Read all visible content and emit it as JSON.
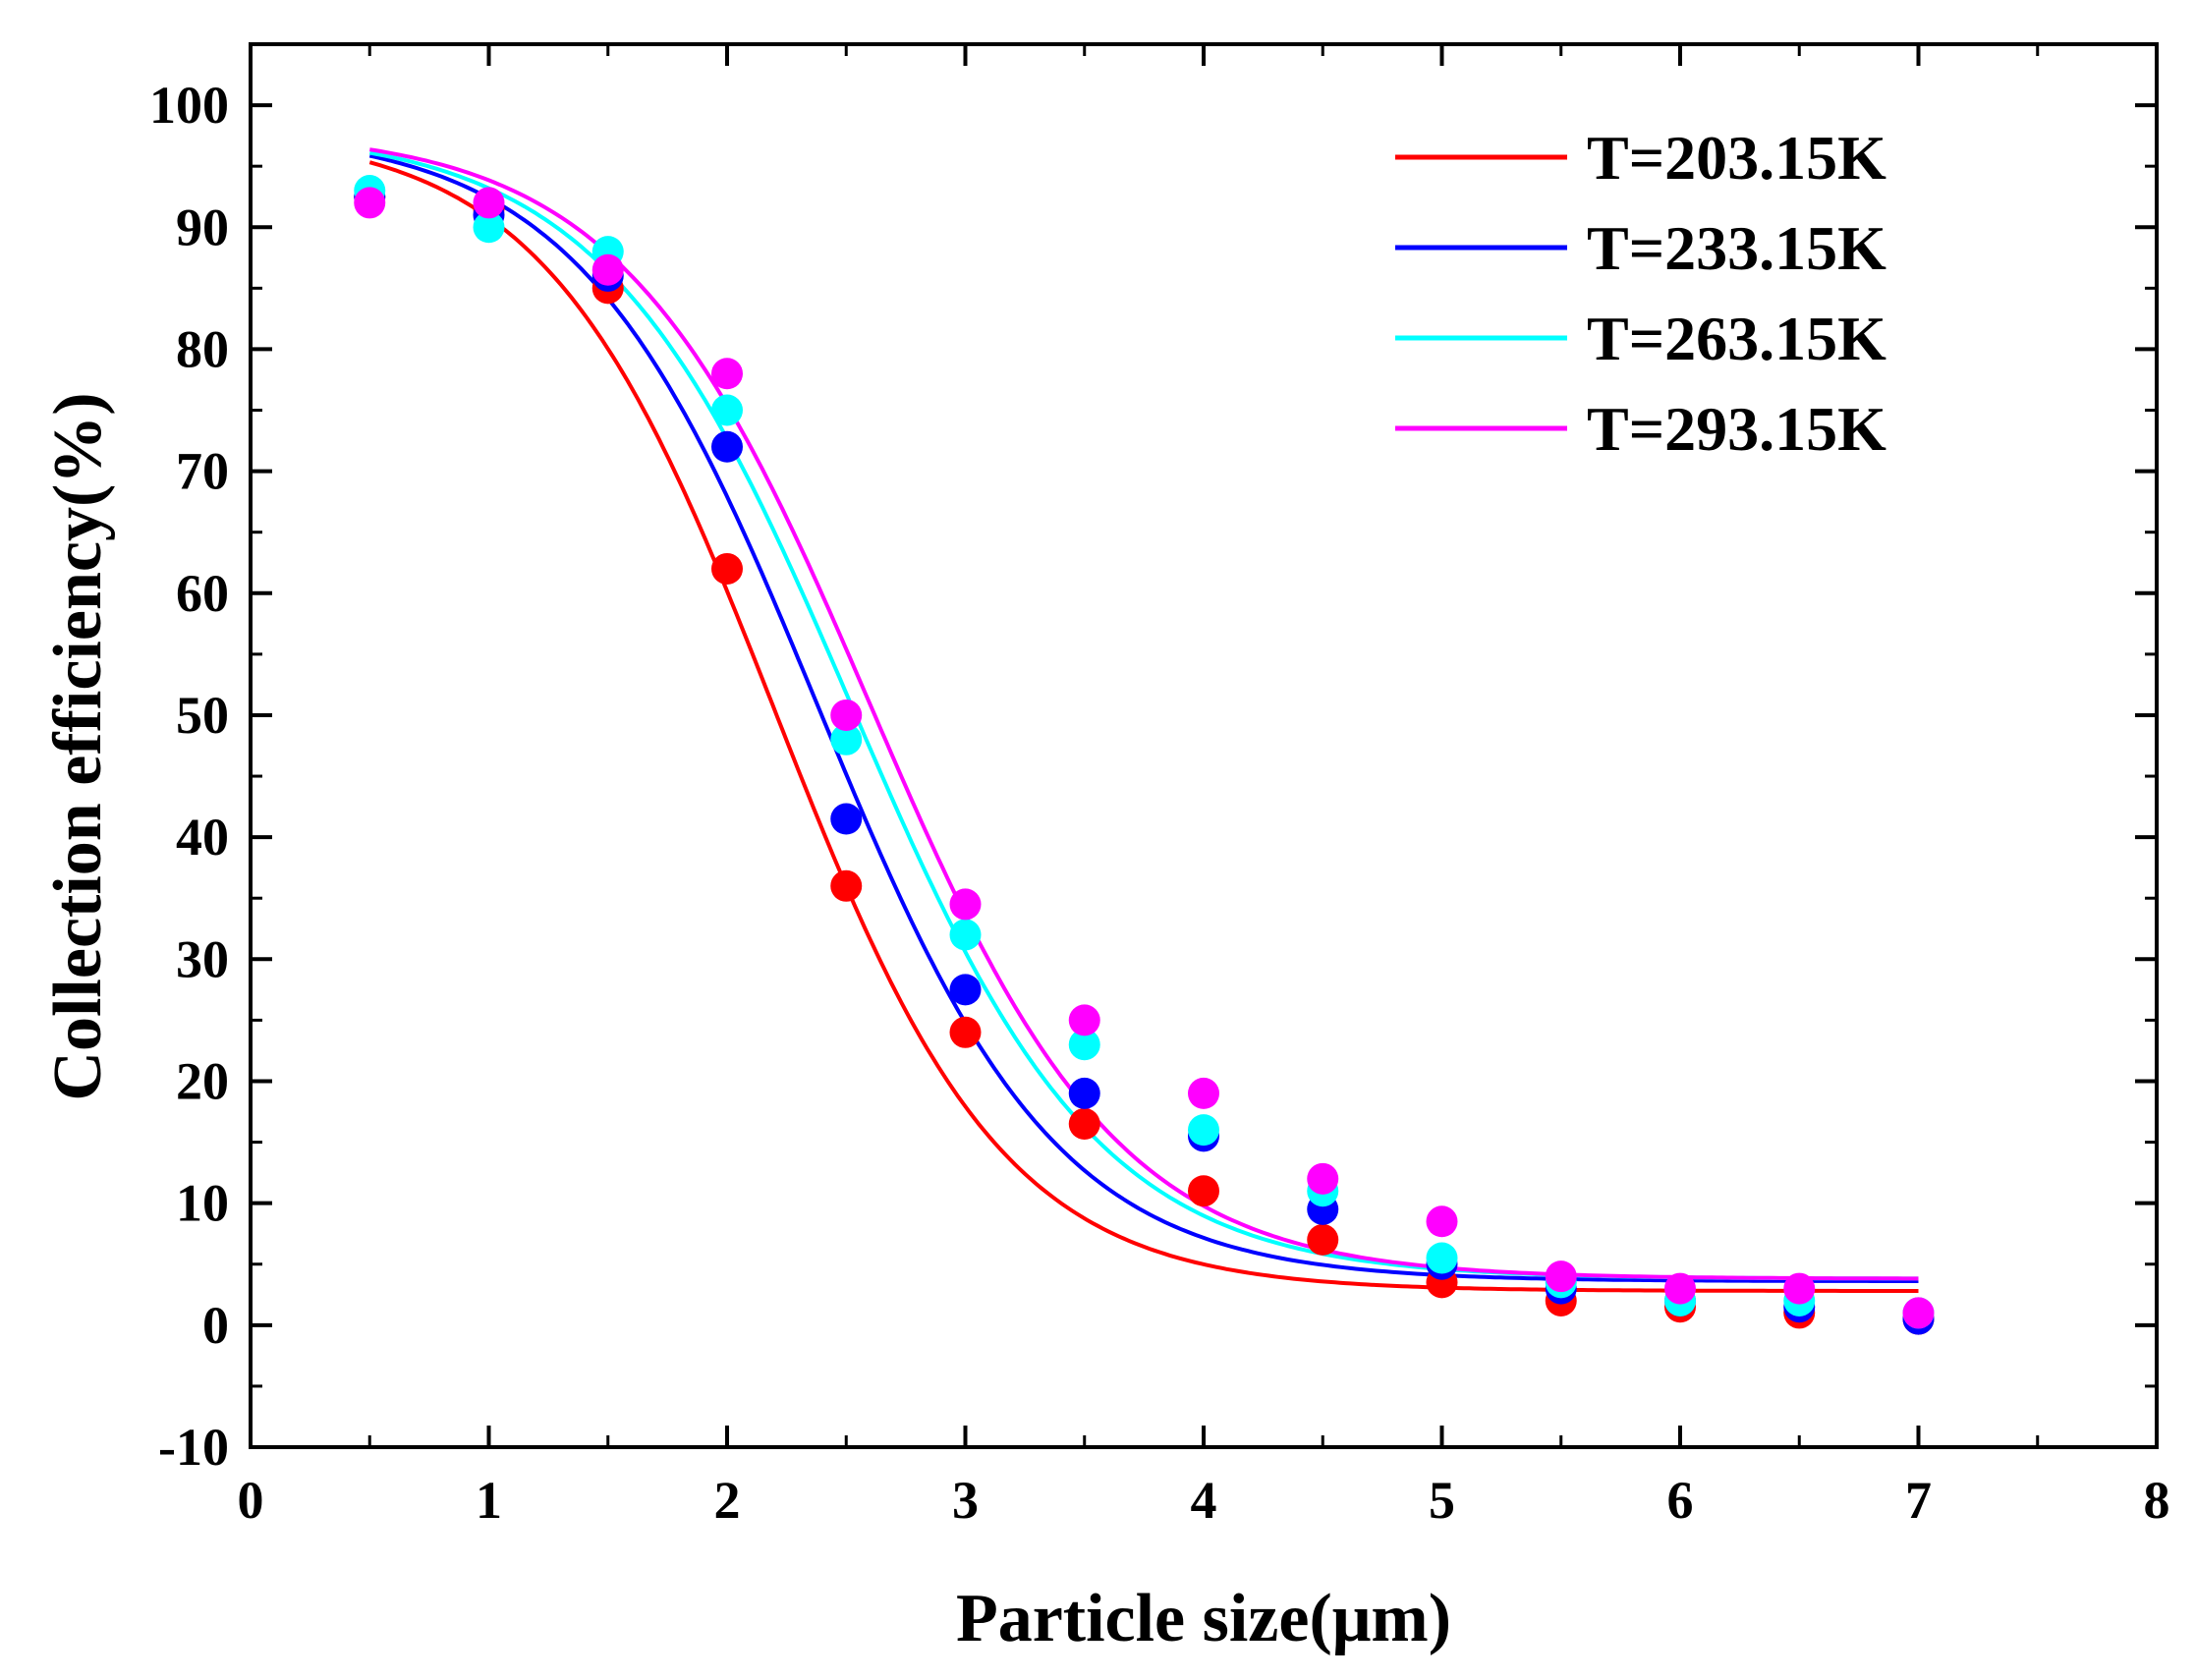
{
  "chart_data": {
    "type": "scatter",
    "title": "",
    "xlabel": "Particle size(μm)",
    "ylabel": "Collection efficiency(%)",
    "xlim": [
      0,
      8
    ],
    "ylim": [
      -10,
      105
    ],
    "xticks": [
      0,
      1,
      2,
      3,
      4,
      5,
      6,
      7,
      8
    ],
    "xtick_labels": [
      "0",
      "1",
      "2",
      "3",
      "4",
      "5",
      "6",
      "7",
      "8"
    ],
    "yticks": [
      -10,
      0,
      10,
      20,
      30,
      40,
      50,
      60,
      70,
      80,
      90,
      100
    ],
    "ytick_labels": [
      "-10",
      "0",
      "10",
      "20",
      "30",
      "40",
      "50",
      "60",
      "70",
      "80",
      "90",
      "100"
    ],
    "grid": false,
    "legend_position": "top-right",
    "x": [
      0.5,
      1,
      1.5,
      2,
      2.5,
      3,
      3.5,
      4,
      4.5,
      5,
      5.5,
      6,
      6.5,
      7
    ],
    "series": [
      {
        "name": "T=203.15K",
        "color": "#ff0000",
        "points": [
          92.5,
          91.5,
          85,
          62,
          36,
          24,
          16.5,
          11,
          7,
          3.5,
          2,
          1.5,
          1,
          0.5
        ],
        "fit": {
          "A1": 98,
          "A2": 2.8,
          "x0": 2.2,
          "dx": 0.48
        }
      },
      {
        "name": "T=233.15K",
        "color": "#0000ff",
        "points": [
          92.5,
          91,
          86,
          72,
          41.5,
          27.5,
          19,
          15.5,
          9.5,
          5,
          3,
          2,
          1.5,
          0.5
        ],
        "fit": {
          "A1": 98,
          "A2": 3.6,
          "x0": 2.38,
          "dx": 0.5
        }
      },
      {
        "name": "T=263.15K",
        "color": "#00ffff",
        "points": [
          93,
          90,
          88,
          75,
          48,
          32,
          23,
          16,
          11,
          5.5,
          3.5,
          2,
          2,
          1
        ],
        "fit": {
          "A1": 98,
          "A2": 3.8,
          "x0": 2.52,
          "dx": 0.52
        }
      },
      {
        "name": "T=293.15K",
        "color": "#ff00ff",
        "points": [
          92,
          92,
          86.5,
          78,
          50,
          34.5,
          25,
          19,
          12,
          8.5,
          4,
          3,
          3,
          1
        ],
        "fit": {
          "A1": 98,
          "A2": 3.8,
          "x0": 2.6,
          "dx": 0.52
        }
      }
    ]
  }
}
